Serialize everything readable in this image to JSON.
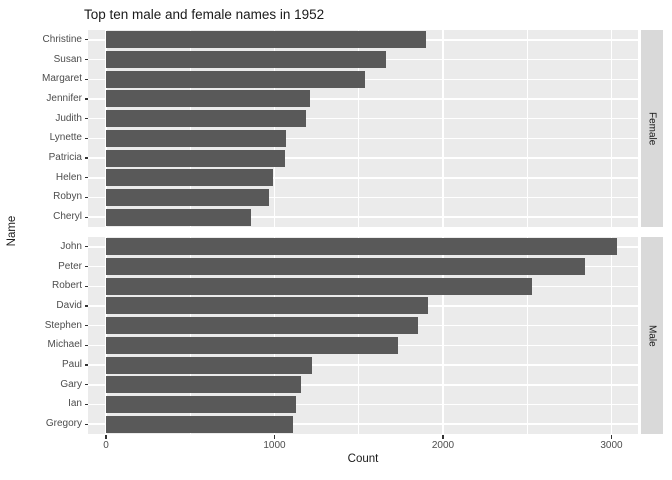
{
  "chart_data": {
    "type": "bar",
    "orientation": "horizontal",
    "title": "Top ten male and female names in 1952",
    "xlabel": "Count",
    "ylabel": "Name",
    "x_ticks": [
      0,
      1000,
      2000,
      3000
    ],
    "x_minor_ticks": [
      500,
      1500,
      2500
    ],
    "xlim": [
      0,
      3150
    ],
    "grid": true,
    "legend": "none",
    "facets": [
      {
        "label": "Female",
        "categories": [
          "Christine",
          "Susan",
          "Margaret",
          "Jennifer",
          "Judith",
          "Lynette",
          "Patricia",
          "Helen",
          "Robyn",
          "Cheryl"
        ],
        "values": [
          1900,
          1660,
          1540,
          1210,
          1185,
          1070,
          1060,
          990,
          970,
          860
        ]
      },
      {
        "label": "Male",
        "categories": [
          "John",
          "Peter",
          "Robert",
          "David",
          "Stephen",
          "Michael",
          "Paul",
          "Gary",
          "Ian",
          "Gregory"
        ],
        "values": [
          3030,
          2840,
          2530,
          1910,
          1850,
          1730,
          1220,
          1160,
          1130,
          1110
        ]
      }
    ],
    "colors": {
      "bar": "#595959",
      "panel_bg": "#EBEBEB",
      "strip_bg": "#D9D9D9",
      "grid": "#FFFFFF",
      "axis_text": "#4D4D4D",
      "title_text": "#1A1A1A",
      "tick_mark": "#333333",
      "background": "#FFFFFF"
    }
  }
}
